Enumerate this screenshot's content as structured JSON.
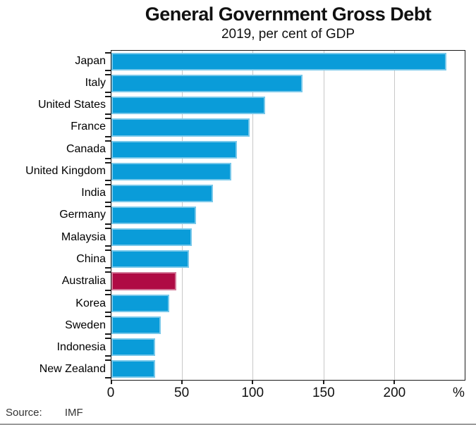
{
  "chart_data": {
    "type": "bar",
    "orientation": "horizontal",
    "title": "General Government Gross Debt",
    "subtitle": "2019, per cent of GDP",
    "categories": [
      "Japan",
      "Italy",
      "United States",
      "France",
      "Canada",
      "United Kingdom",
      "India",
      "Germany",
      "Malaysia",
      "China",
      "Australia",
      "Korea",
      "Sweden",
      "Indonesia",
      "New Zealand"
    ],
    "values": [
      237,
      135,
      109,
      98,
      89,
      85,
      72,
      60,
      57,
      55,
      46,
      41,
      35,
      31,
      31
    ],
    "xlabel": "%",
    "xlim": [
      0,
      250
    ],
    "xticks": [
      0,
      50,
      100,
      150,
      200
    ],
    "grid": "vertical",
    "legend": "none",
    "bar_color": "#0a9cd9",
    "highlight": {
      "category": "Australia",
      "color": "#af0b44"
    },
    "gridline_color": "#c8c8c8"
  },
  "footer": {
    "source_label": "Source:",
    "source_value": "IMF"
  }
}
